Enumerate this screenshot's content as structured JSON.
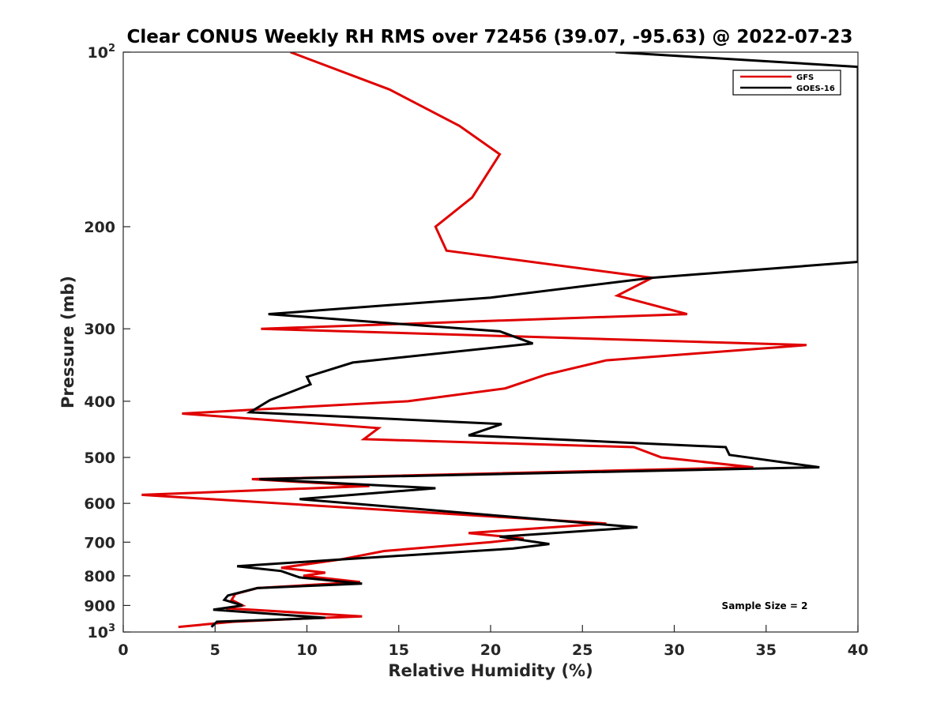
{
  "chart_data": {
    "type": "line",
    "title": "Clear CONUS Weekly RH RMS over 72456 (39.07, -95.63) @ 2022-07-23",
    "xlabel": "Relative Humidity (%)",
    "ylabel": "Pressure (mb)",
    "xlim": [
      0,
      40
    ],
    "ylim": [
      100,
      1000
    ],
    "yscale": "log",
    "y_reversed": true,
    "grid": false,
    "legend_position": "top-right",
    "x_ticks": [
      "0",
      "5",
      "10",
      "15",
      "20",
      "25",
      "30",
      "35",
      "40"
    ],
    "x_tick_values": [
      0,
      5,
      10,
      15,
      20,
      25,
      30,
      35,
      40
    ],
    "y_ticks": [
      {
        "value": 100,
        "base": "10",
        "sup": "2"
      },
      {
        "value": 200,
        "base": "200",
        "sup": ""
      },
      {
        "value": 300,
        "base": "300",
        "sup": ""
      },
      {
        "value": 400,
        "base": "400",
        "sup": ""
      },
      {
        "value": 500,
        "base": "500",
        "sup": ""
      },
      {
        "value": 600,
        "base": "600",
        "sup": ""
      },
      {
        "value": 700,
        "base": "700",
        "sup": ""
      },
      {
        "value": 800,
        "base": "800",
        "sup": ""
      },
      {
        "value": 900,
        "base": "900",
        "sup": ""
      },
      {
        "value": 1000,
        "base": "10",
        "sup": "3"
      }
    ],
    "annotation": "Sample Size = 2",
    "series": [
      {
        "name": "GFS",
        "color": "#e00000",
        "points": [
          [
            9.1,
            100
          ],
          [
            14.5,
            116
          ],
          [
            18.3,
            134
          ],
          [
            20.5,
            150
          ],
          [
            19.0,
            178
          ],
          [
            17.0,
            200
          ],
          [
            17.6,
            220
          ],
          [
            28.8,
            245
          ],
          [
            26.9,
            263
          ],
          [
            30.7,
            283
          ],
          [
            7.5,
            300
          ],
          [
            37.2,
            320
          ],
          [
            26.3,
            340
          ],
          [
            23.0,
            360
          ],
          [
            20.8,
            380
          ],
          [
            15.5,
            400
          ],
          [
            3.2,
            420
          ],
          [
            13.9,
            445
          ],
          [
            13.1,
            465
          ],
          [
            27.8,
            480
          ],
          [
            29.3,
            500
          ],
          [
            34.3,
            520
          ],
          [
            7.0,
            545
          ],
          [
            13.4,
            560
          ],
          [
            1.0,
            580
          ],
          [
            26.3,
            650
          ],
          [
            18.8,
            675
          ],
          [
            21.8,
            690
          ],
          [
            20.0,
            700
          ],
          [
            14.2,
            725
          ],
          [
            11.8,
            750
          ],
          [
            8.6,
            775
          ],
          [
            11.0,
            790
          ],
          [
            9.8,
            800
          ],
          [
            12.9,
            820
          ],
          [
            7.3,
            840
          ],
          [
            6.1,
            860
          ],
          [
            5.9,
            880
          ],
          [
            6.5,
            900
          ],
          [
            5.6,
            910
          ],
          [
            13.0,
            940
          ],
          [
            9.2,
            950
          ],
          [
            6.0,
            960
          ],
          [
            3.0,
            980
          ]
        ]
      },
      {
        "name": "GOES-16",
        "color": "#000000",
        "points": [
          [
            26.8,
            100
          ],
          [
            40.0,
            106
          ],
          [
            40.0,
            230
          ],
          [
            28.8,
            245
          ],
          [
            20.0,
            265
          ],
          [
            7.9,
            283
          ],
          [
            20.5,
            303
          ],
          [
            22.3,
            318
          ],
          [
            12.5,
            343
          ],
          [
            10.0,
            363
          ],
          [
            10.2,
            374
          ],
          [
            8.0,
            398
          ],
          [
            6.9,
            418
          ],
          [
            20.6,
            438
          ],
          [
            18.8,
            458
          ],
          [
            32.8,
            480
          ],
          [
            33.0,
            495
          ],
          [
            37.9,
            520
          ],
          [
            7.4,
            545
          ],
          [
            17.0,
            565
          ],
          [
            9.6,
            590
          ],
          [
            28.0,
            660
          ],
          [
            20.5,
            685
          ],
          [
            23.2,
            705
          ],
          [
            21.2,
            718
          ],
          [
            11.8,
            750
          ],
          [
            6.2,
            770
          ],
          [
            8.6,
            785
          ],
          [
            9.6,
            805
          ],
          [
            13.0,
            825
          ],
          [
            7.3,
            840
          ],
          [
            5.7,
            865
          ],
          [
            5.5,
            880
          ],
          [
            6.5,
            900
          ],
          [
            4.9,
            915
          ],
          [
            11.0,
            945
          ],
          [
            5.1,
            960
          ],
          [
            4.8,
            980
          ]
        ]
      }
    ]
  }
}
